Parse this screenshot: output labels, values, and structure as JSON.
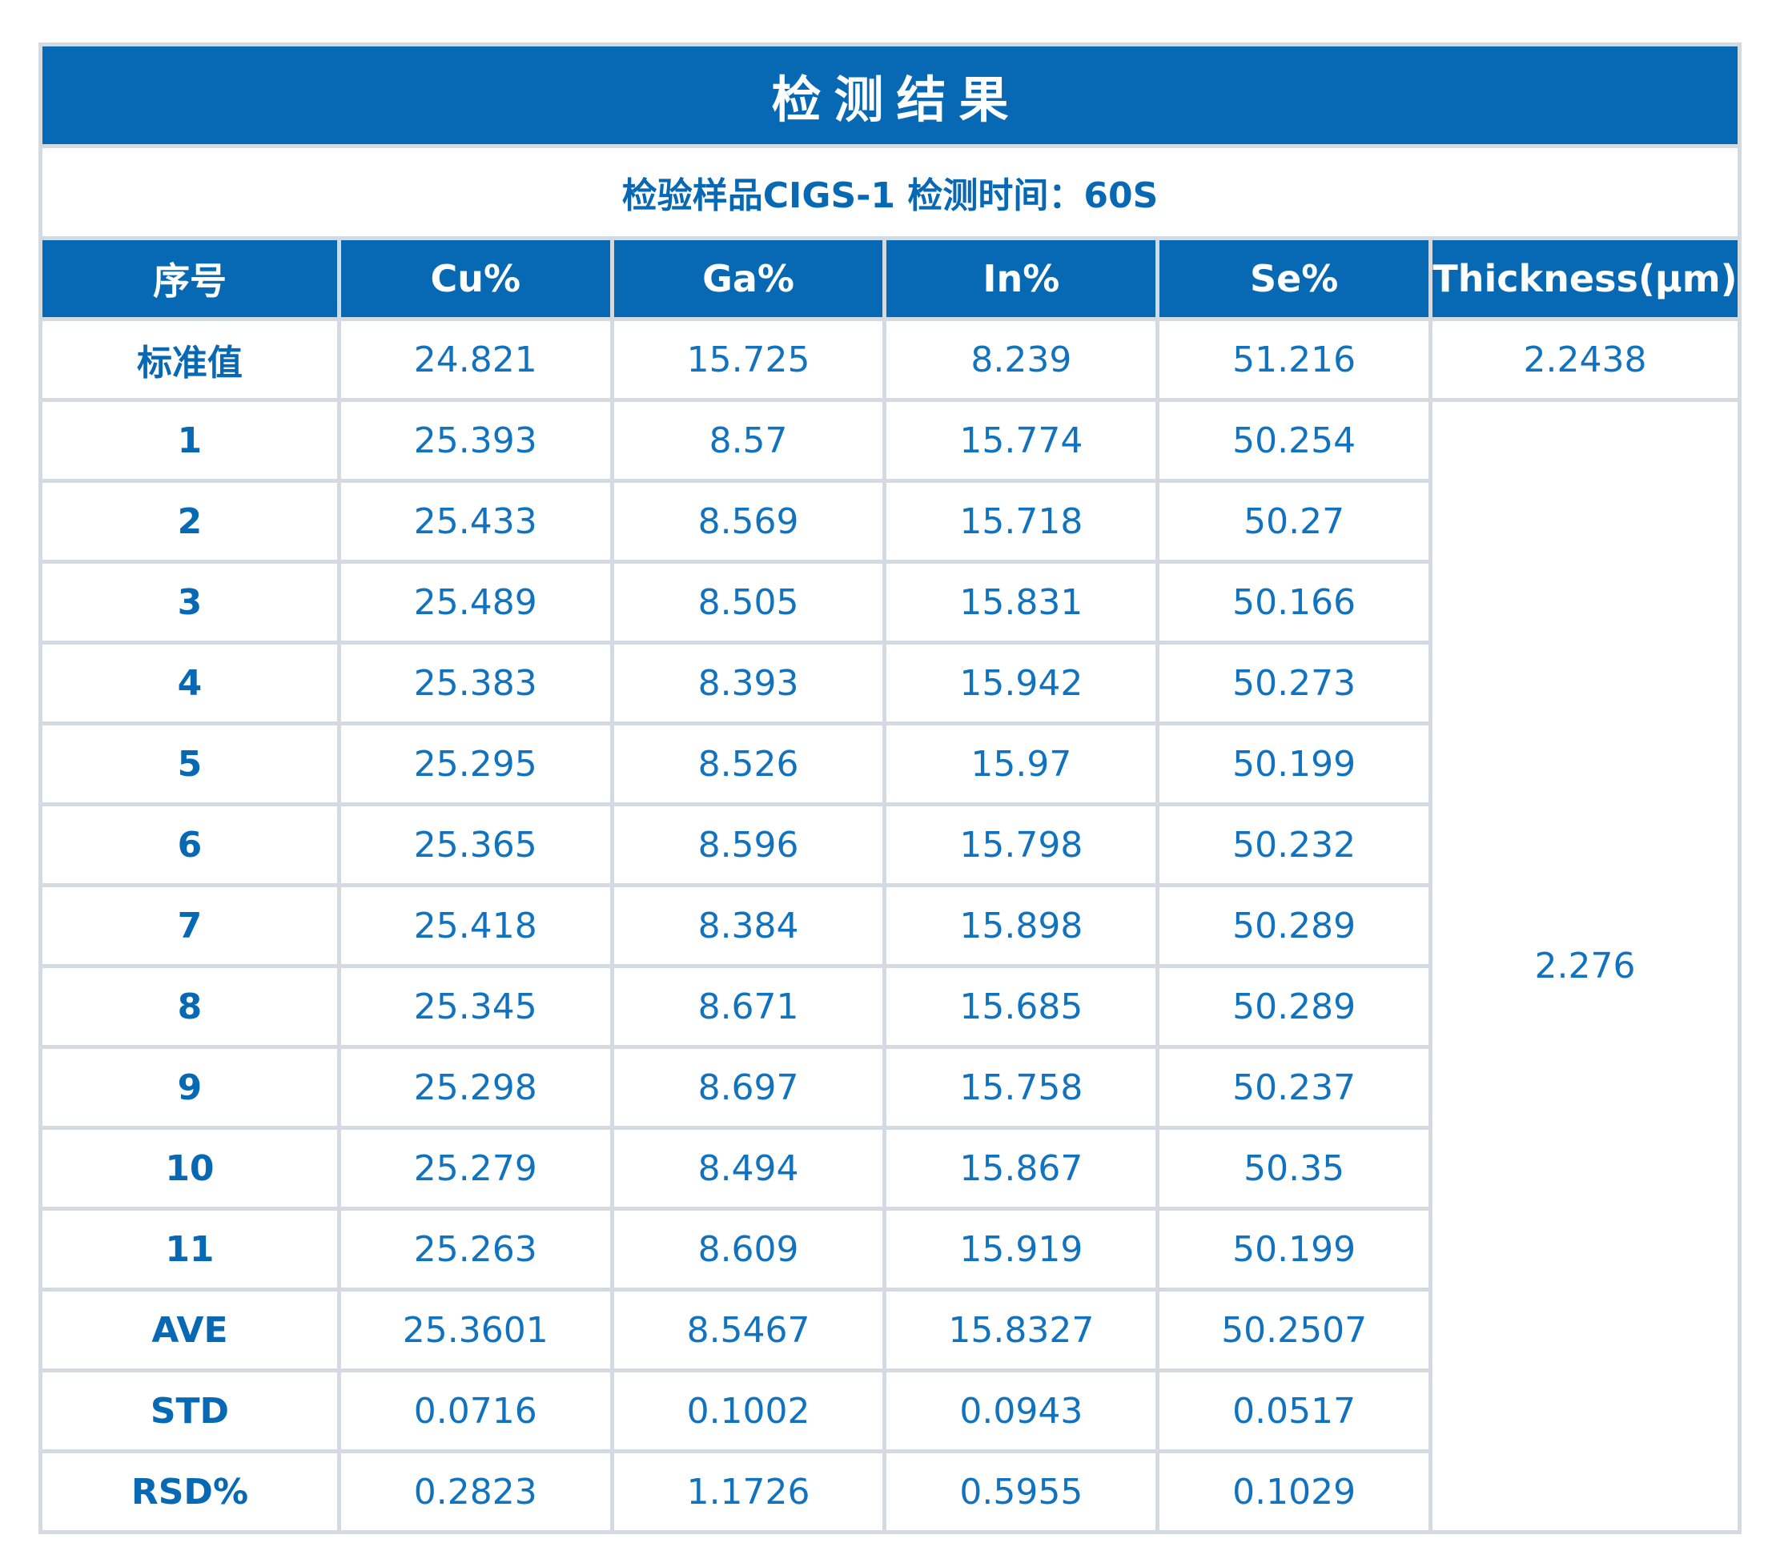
{
  "title": "检测结果",
  "subtitle": "检验样品CIGS-1 检测时间：60S",
  "colors": {
    "brand_blue": "#0768b3",
    "value_blue": "#1173bf",
    "border_gray": "#d3dae1",
    "header_text": "#ffffff",
    "background": "#ffffff"
  },
  "table": {
    "columns": [
      "序号",
      "Cu%",
      "Ga%",
      "In%",
      "Se%",
      "Thickness(μm)"
    ],
    "standard_row": {
      "label": "标准值",
      "values": [
        "24.821",
        "15.725",
        "8.239",
        "51.216"
      ],
      "thickness": "2.2438"
    },
    "merged_thickness": "2.276",
    "rows": [
      {
        "label": "1",
        "values": [
          "25.393",
          "8.57",
          "15.774",
          "50.254"
        ]
      },
      {
        "label": "2",
        "values": [
          "25.433",
          "8.569",
          "15.718",
          "50.27"
        ]
      },
      {
        "label": "3",
        "values": [
          "25.489",
          "8.505",
          "15.831",
          "50.166"
        ]
      },
      {
        "label": "4",
        "values": [
          "25.383",
          "8.393",
          "15.942",
          "50.273"
        ]
      },
      {
        "label": "5",
        "values": [
          "25.295",
          "8.526",
          "15.97",
          "50.199"
        ]
      },
      {
        "label": "6",
        "values": [
          "25.365",
          "8.596",
          "15.798",
          "50.232"
        ]
      },
      {
        "label": "7",
        "values": [
          "25.418",
          "8.384",
          "15.898",
          "50.289"
        ]
      },
      {
        "label": "8",
        "values": [
          "25.345",
          "8.671",
          "15.685",
          "50.289"
        ]
      },
      {
        "label": "9",
        "values": [
          "25.298",
          "8.697",
          "15.758",
          "50.237"
        ]
      },
      {
        "label": "10",
        "values": [
          "25.279",
          "8.494",
          "15.867",
          "50.35"
        ]
      },
      {
        "label": "11",
        "values": [
          "25.263",
          "8.609",
          "15.919",
          "50.199"
        ]
      },
      {
        "label": "AVE",
        "values": [
          "25.3601",
          "8.5467",
          "15.8327",
          "50.2507"
        ]
      },
      {
        "label": "STD",
        "values": [
          "0.0716",
          "0.1002",
          "0.0943",
          "0.0517"
        ]
      },
      {
        "label": "RSD%",
        "values": [
          "0.2823",
          "1.1726",
          "0.5955",
          "0.1029"
        ]
      }
    ]
  }
}
